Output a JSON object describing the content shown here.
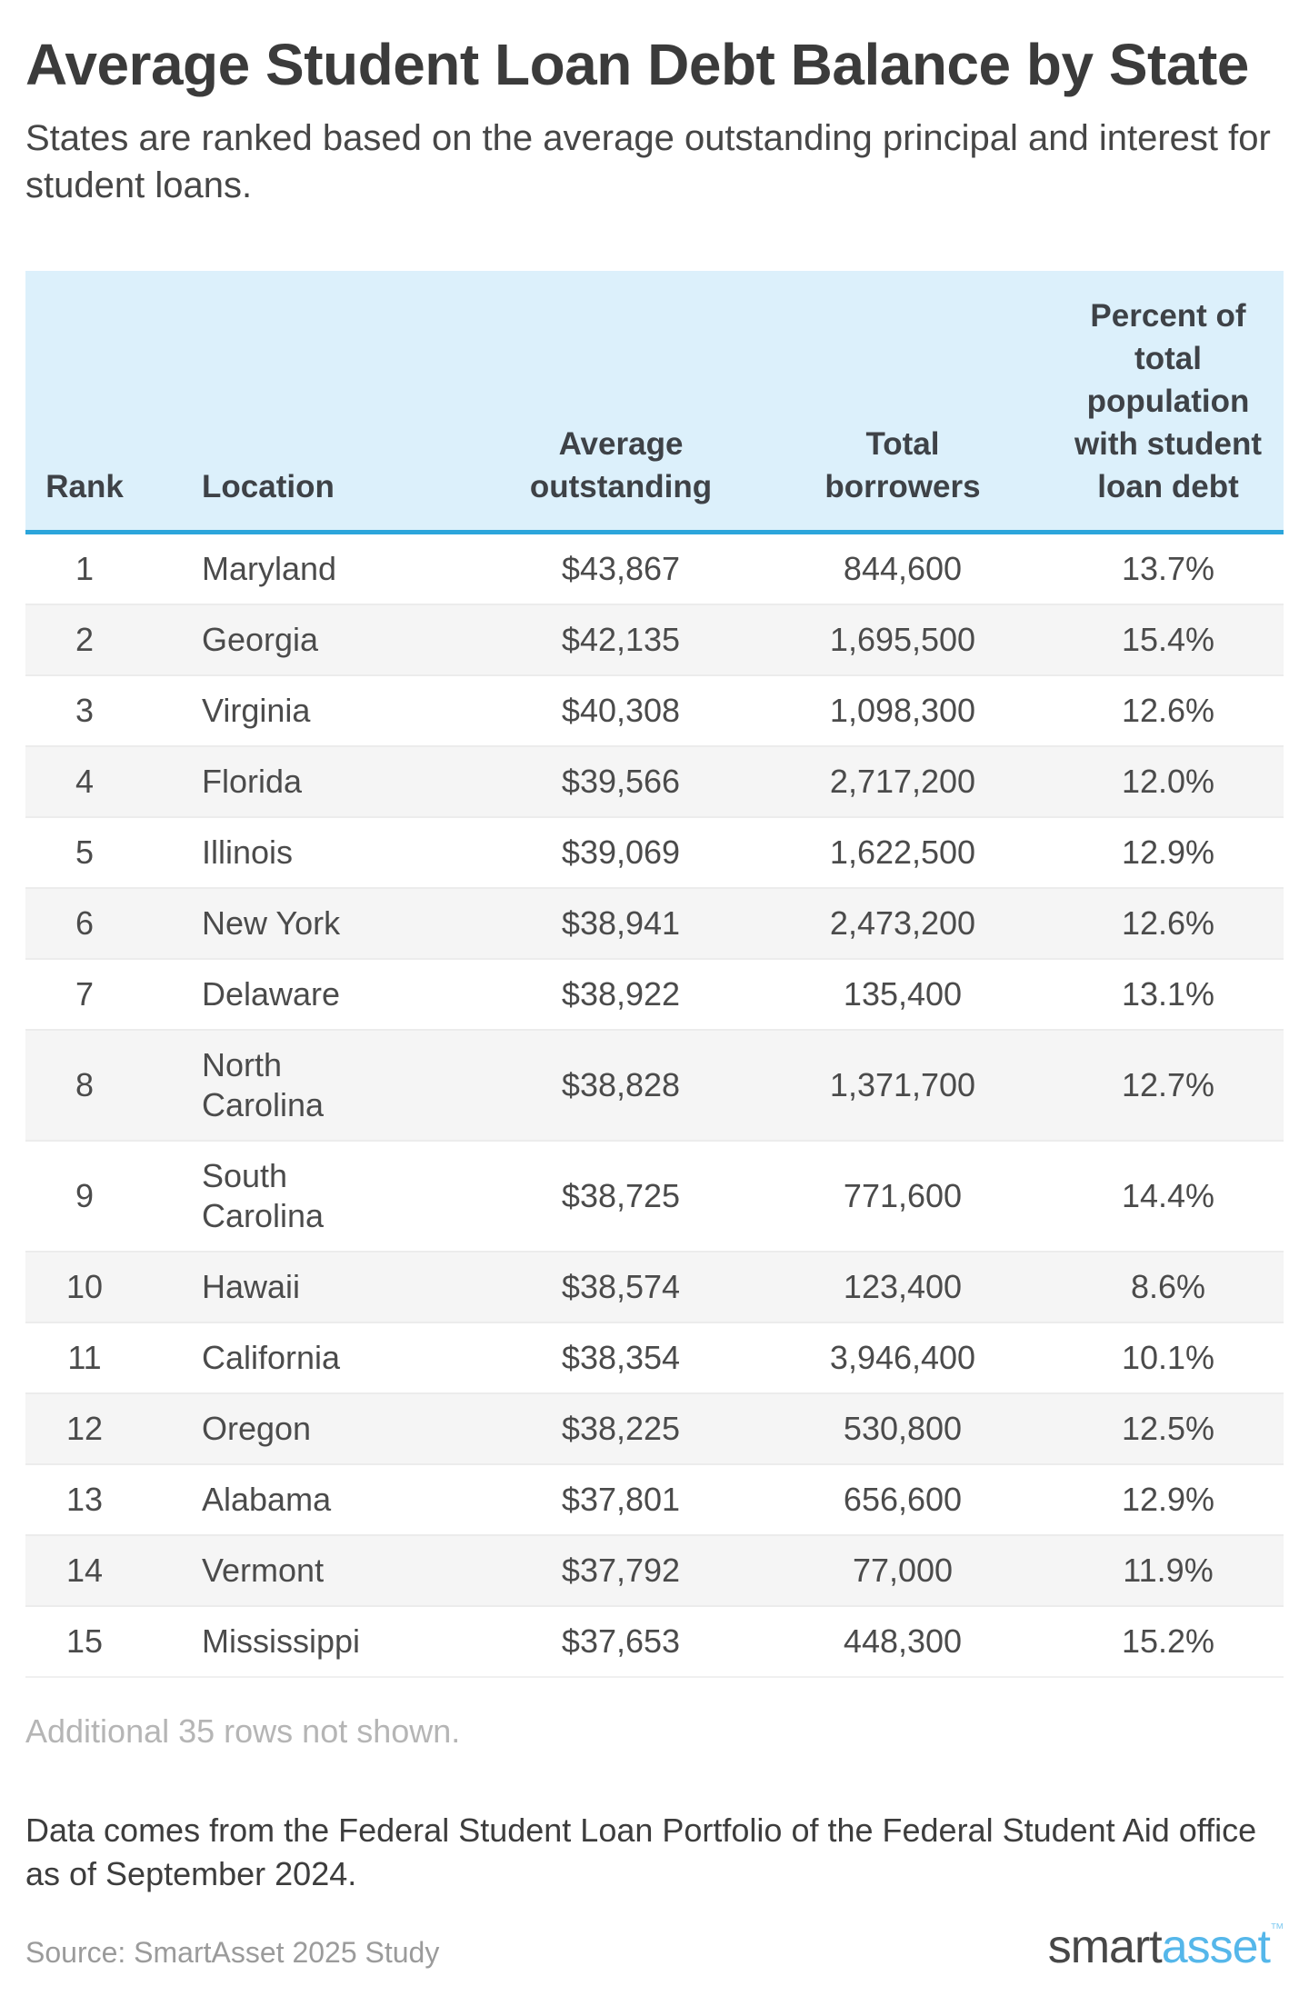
{
  "page": {
    "title": "Average Student Loan Debt Balance by State",
    "subtitle": "States are ranked based on the average outstanding principal and interest for student loans."
  },
  "chart_data": {
    "type": "table",
    "columns": [
      "Rank",
      "Location",
      "Average outstanding",
      "Total borrowers",
      "Percent of total population with student loan debt"
    ],
    "rows": [
      [
        "1",
        "Maryland",
        "$43,867",
        "844,600",
        "13.7%"
      ],
      [
        "2",
        "Georgia",
        "$42,135",
        "1,695,500",
        "15.4%"
      ],
      [
        "3",
        "Virginia",
        "$40,308",
        "1,098,300",
        "12.6%"
      ],
      [
        "4",
        "Florida",
        "$39,566",
        "2,717,200",
        "12.0%"
      ],
      [
        "5",
        "Illinois",
        "$39,069",
        "1,622,500",
        "12.9%"
      ],
      [
        "6",
        "New York",
        "$38,941",
        "2,473,200",
        "12.6%"
      ],
      [
        "7",
        "Delaware",
        "$38,922",
        "135,400",
        "13.1%"
      ],
      [
        "8",
        "North Carolina",
        "$38,828",
        "1,371,700",
        "12.7%"
      ],
      [
        "9",
        "South Carolina",
        "$38,725",
        "771,600",
        "14.4%"
      ],
      [
        "10",
        "Hawaii",
        "$38,574",
        "123,400",
        "8.6%"
      ],
      [
        "11",
        "California",
        "$38,354",
        "3,946,400",
        "10.1%"
      ],
      [
        "12",
        "Oregon",
        "$38,225",
        "530,800",
        "12.5%"
      ],
      [
        "13",
        "Alabama",
        "$37,801",
        "656,600",
        "12.9%"
      ],
      [
        "14",
        "Vermont",
        "$37,792",
        "77,000",
        "11.9%"
      ],
      [
        "15",
        "Mississippi",
        "$37,653",
        "448,300",
        "15.2%"
      ]
    ]
  },
  "footer": {
    "truncation_note": "Additional 35 rows not shown.",
    "data_note": "Data comes from the Federal Student Loan Portfolio of the Federal Student Aid office as of September 2024.",
    "source": "Source: SmartAsset 2025 Study"
  },
  "logo": {
    "part1": "smart",
    "part2": "asset",
    "trademark": "™"
  },
  "colors": {
    "header_bg": "#dcf0fb",
    "header_border": "#2ca5db",
    "stripe": "#f5f5f5",
    "accent_blue": "#55b7ea",
    "title_text": "#3b3b3b",
    "body_text": "#4b4b4b",
    "muted_text": "#b5b5b5"
  }
}
